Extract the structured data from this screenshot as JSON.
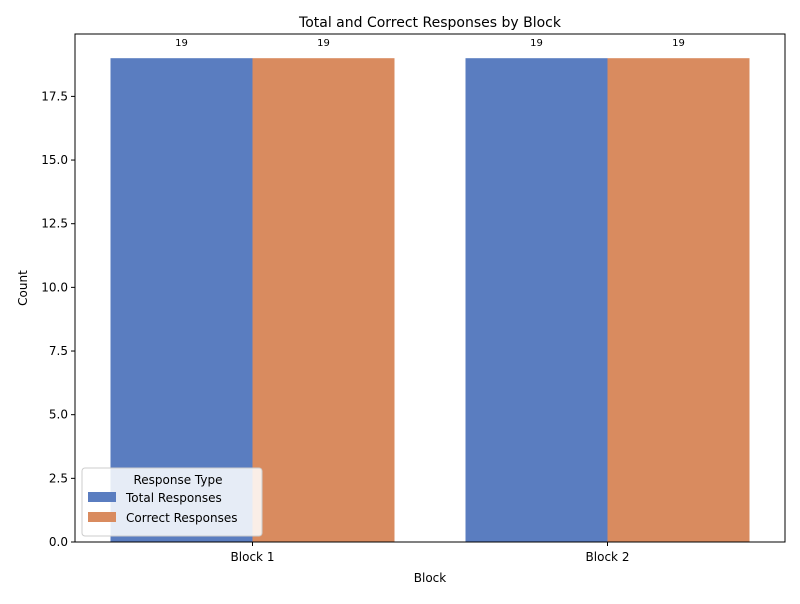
{
  "chart_data": {
    "type": "bar",
    "title": "Total and Correct Responses by Block",
    "xlabel": "Block",
    "ylabel": "Count",
    "categories": [
      "Block 1",
      "Block 2"
    ],
    "series": [
      {
        "name": "Total Responses",
        "values": [
          19,
          19
        ],
        "color": "#5a7dc0"
      },
      {
        "name": "Correct Responses",
        "values": [
          19,
          19
        ],
        "color": "#d98b5f"
      }
    ],
    "ylim": [
      0,
      19.95
    ],
    "yticks": [
      "0.0",
      "2.5",
      "5.0",
      "7.5",
      "10.0",
      "12.5",
      "15.0",
      "17.5"
    ],
    "legend": {
      "title": "Response Type",
      "placement": "lower-left"
    },
    "grid": false
  }
}
